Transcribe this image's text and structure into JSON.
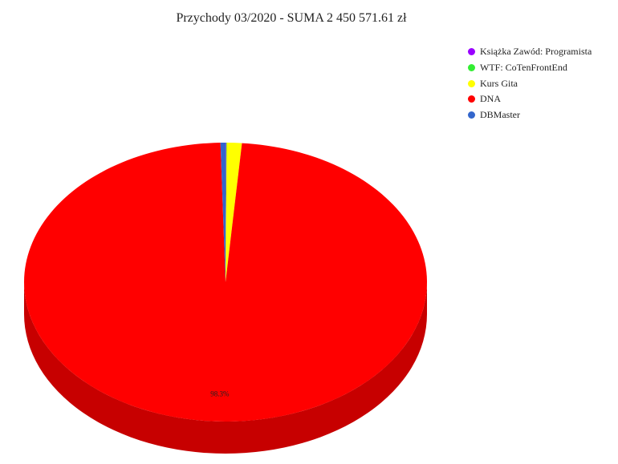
{
  "chart_data": {
    "type": "pie",
    "title": "Przychody 03/2020 - SUMA 2 450 571.61 zł",
    "is_3d": true,
    "legend_position": "top-right",
    "slices": [
      {
        "name": "Książka Zawód: Programista",
        "value": 0.05,
        "color": "#9900ff"
      },
      {
        "name": "WTF: CoTenFrontEnd",
        "value": 0.05,
        "color": "#33ee33"
      },
      {
        "name": "Kurs Gita",
        "value": 1.2,
        "color": "#ffff00"
      },
      {
        "name": "DNA",
        "value": 98.3,
        "color": "#ff0000",
        "label": "98.3%"
      },
      {
        "name": "DBMaster",
        "value": 0.4,
        "color": "#3366cc"
      }
    ]
  }
}
